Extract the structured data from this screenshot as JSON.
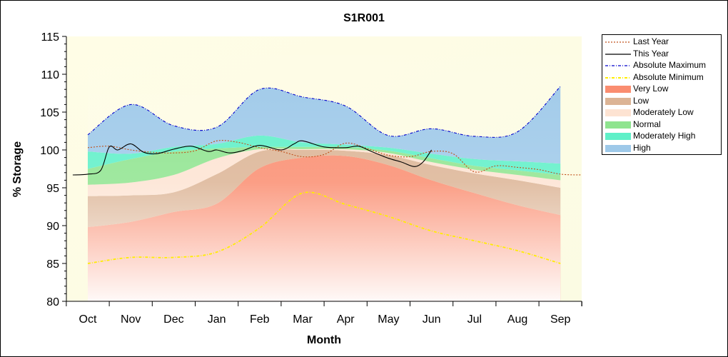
{
  "chart_data": {
    "type": "area",
    "title": "S1R001",
    "xlabel": "Month",
    "ylabel": "% Storage",
    "ylim": [
      80,
      115
    ],
    "yticks": [
      80,
      85,
      90,
      95,
      100,
      105,
      110,
      115
    ],
    "categories": [
      "Oct",
      "Nov",
      "Dec",
      "Jan",
      "Feb",
      "Mar",
      "Apr",
      "May",
      "Jun",
      "Jul",
      "Aug",
      "Sep"
    ],
    "legend_position": "right",
    "bands": [
      {
        "name": "Very Low",
        "color": "#fa8d70",
        "lower": [
          80,
          80,
          80,
          80,
          80,
          80,
          80,
          80,
          80,
          80,
          80,
          80
        ],
        "upper": [
          89.8,
          90.5,
          91.8,
          92.9,
          97.6,
          99.0,
          99.2,
          98.0,
          96.0,
          94.3,
          92.7,
          91.4
        ]
      },
      {
        "name": "Low",
        "color": "#dcb495",
        "lower": [
          89.8,
          90.5,
          91.8,
          92.9,
          97.6,
          99.0,
          99.2,
          98.0,
          96.0,
          94.3,
          92.7,
          91.4
        ],
        "upper": [
          93.9,
          94.0,
          94.4,
          96.8,
          99.8,
          100.0,
          99.9,
          99.3,
          98.0,
          96.9,
          96.0,
          95.0
        ]
      },
      {
        "name": "Moderately Low",
        "color": "#fde3d2",
        "lower": [
          93.9,
          94.0,
          94.4,
          96.8,
          99.8,
          100.0,
          99.9,
          99.3,
          98.0,
          96.9,
          96.0,
          95.0
        ],
        "upper": [
          95.4,
          95.7,
          96.7,
          98.9,
          100.1,
          100.1,
          100.1,
          99.6,
          98.4,
          97.4,
          96.7,
          96.0
        ]
      },
      {
        "name": "Normal",
        "color": "#8fe48f",
        "lower": [
          95.4,
          95.7,
          96.7,
          98.9,
          100.1,
          100.1,
          100.1,
          99.6,
          98.4,
          97.4,
          96.7,
          96.0
        ],
        "upper": [
          97.5,
          98.8,
          99.8,
          100.2,
          100.4,
          100.4,
          100.4,
          99.9,
          98.9,
          97.9,
          97.3,
          96.7
        ]
      },
      {
        "name": "Moderately High",
        "color": "#5ff0c8",
        "lower": [
          97.5,
          98.8,
          99.8,
          100.2,
          100.4,
          100.4,
          100.4,
          99.9,
          98.9,
          97.9,
          97.3,
          96.7
        ],
        "upper": [
          99.8,
          99.5,
          100.4,
          100.8,
          101.9,
          101.0,
          100.7,
          100.3,
          99.5,
          98.8,
          98.5,
          98.2
        ]
      },
      {
        "name": "High",
        "color": "#9ec9e9",
        "lower": [
          99.8,
          99.5,
          100.4,
          100.8,
          101.9,
          101.0,
          100.7,
          100.3,
          99.5,
          98.8,
          98.5,
          98.2
        ],
        "upper": [
          102.0,
          106.0,
          103.2,
          103.0,
          108.0,
          107.0,
          105.8,
          101.9,
          102.8,
          101.8,
          102.4,
          108.4
        ]
      }
    ],
    "series": [
      {
        "name": "Last Year",
        "color": "#c0501a",
        "style": "dotted",
        "x": [
          0,
          0.5,
          1,
          1.5,
          2,
          2.5,
          3,
          3.5,
          4,
          4.5,
          5,
          5.5,
          6,
          6.5,
          7,
          7.5,
          8,
          8.5,
          9,
          9.5,
          10,
          10.5,
          11,
          11.5
        ],
        "values": [
          100.3,
          100.5,
          100.0,
          99.7,
          99.6,
          99.9,
          101.2,
          101.0,
          100.3,
          99.8,
          99.1,
          99.4,
          100.9,
          100.2,
          99.3,
          99.1,
          99.8,
          99.5,
          97.1,
          97.9,
          97.7,
          97.4,
          96.8,
          96.7
        ]
      },
      {
        "name": "This Year",
        "color": "#000000",
        "style": "solid",
        "x": [
          -0.35,
          0,
          0.3,
          0.5,
          0.7,
          1,
          1.3,
          1.6,
          2,
          2.4,
          2.8,
          3,
          3.3,
          3.6,
          4,
          4.5,
          4.8,
          5,
          5.5,
          6,
          6.3,
          6.6,
          7,
          7.3,
          7.6,
          7.8,
          8
        ],
        "values": [
          96.7,
          96.8,
          97.3,
          100.4,
          100.0,
          100.8,
          99.7,
          99.5,
          100.1,
          100.5,
          99.8,
          100.0,
          99.6,
          99.9,
          100.6,
          100.0,
          100.8,
          101.2,
          100.4,
          100.3,
          100.5,
          99.8,
          98.9,
          98.4,
          97.8,
          98.4,
          100.0
        ]
      },
      {
        "name": "Absolute Maximum",
        "color": "#0000cc",
        "style": "dashdot",
        "x": [
          0,
          1,
          2,
          3,
          4,
          5,
          6,
          7,
          8,
          9,
          10,
          11
        ],
        "values": [
          102.0,
          106.0,
          103.2,
          103.0,
          108.0,
          107.0,
          105.8,
          101.9,
          102.8,
          101.8,
          102.4,
          108.4
        ]
      },
      {
        "name": "Absolute Minimum",
        "color": "#ffee00",
        "style": "dashdot",
        "x": [
          0,
          1,
          2,
          3,
          4,
          5,
          6,
          7,
          8,
          9,
          10,
          11
        ],
        "values": [
          85.0,
          85.8,
          85.8,
          86.5,
          89.7,
          94.3,
          92.8,
          91.2,
          89.3,
          88.0,
          86.7,
          85.0
        ]
      }
    ]
  },
  "legend": {
    "items": [
      {
        "label": "Last Year",
        "kind": "line",
        "color": "#c0501a",
        "dash": "2,2"
      },
      {
        "label": "This Year",
        "kind": "line",
        "color": "#000000",
        "dash": ""
      },
      {
        "label": "Absolute Maximum",
        "kind": "line",
        "color": "#0000cc",
        "dash": "4,2,1,2"
      },
      {
        "label": "Absolute Minimum",
        "kind": "line",
        "color": "#ffee00",
        "dash": "4,2,1,2"
      },
      {
        "label": "Very Low",
        "kind": "fill",
        "color": "#fa8d70"
      },
      {
        "label": "Low",
        "kind": "fill",
        "color": "#dcb495"
      },
      {
        "label": "Moderately Low",
        "kind": "fill",
        "color": "#fde3d2"
      },
      {
        "label": "Normal",
        "kind": "fill",
        "color": "#8fe48f"
      },
      {
        "label": "Moderately High",
        "kind": "fill",
        "color": "#5ff0c8"
      },
      {
        "label": "High",
        "kind": "fill",
        "color": "#9ec9e9"
      }
    ]
  }
}
